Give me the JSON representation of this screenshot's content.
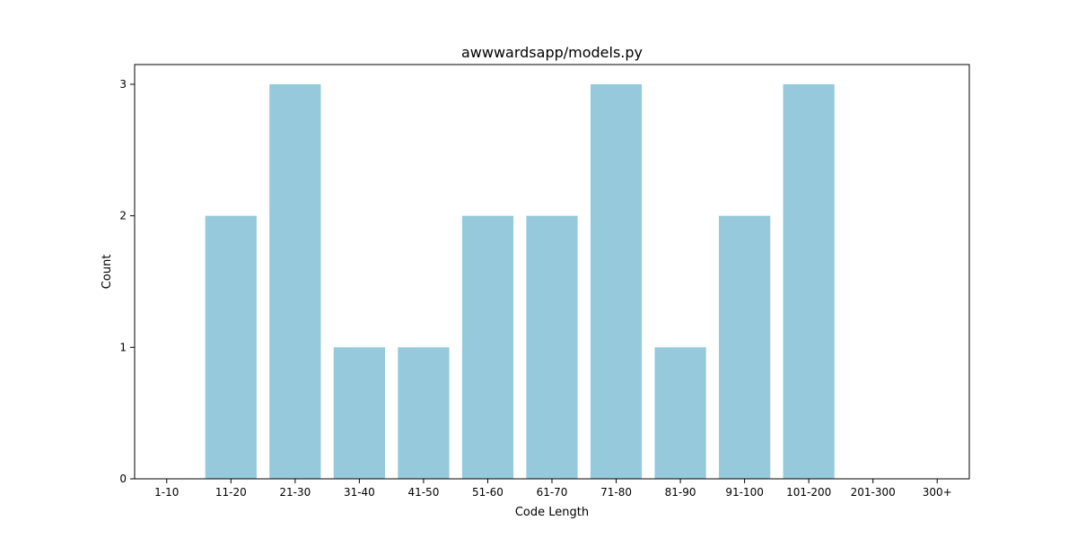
{
  "chart_data": {
    "type": "bar",
    "title": "awwwardsapp/models.py",
    "xlabel": "Code Length",
    "ylabel": "Count",
    "categories": [
      "1-10",
      "11-20",
      "21-30",
      "31-40",
      "41-50",
      "51-60",
      "61-70",
      "71-80",
      "81-90",
      "91-100",
      "101-200",
      "201-300",
      "300+"
    ],
    "values": [
      0,
      2,
      3,
      1,
      1,
      2,
      2,
      3,
      1,
      2,
      3,
      0,
      0
    ],
    "ylim": [
      0,
      3.15
    ],
    "yticks": [
      0,
      1,
      2,
      3
    ],
    "bar_color": "#96c9dc",
    "grid": false,
    "legend": "none"
  }
}
